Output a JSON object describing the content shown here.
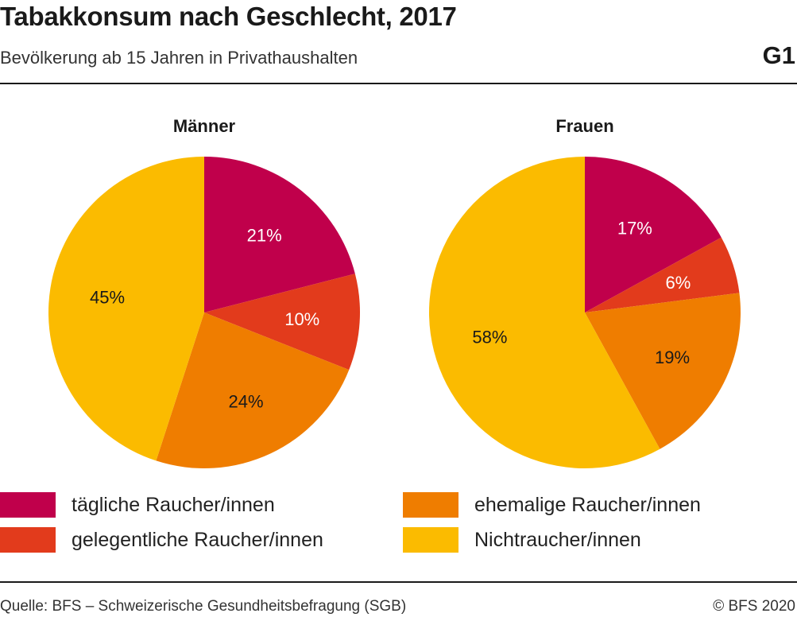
{
  "header": {
    "title": "Tabakkonsum nach Geschlecht, 2017",
    "subtitle": "Bevölkerung ab 15 Jahren in Privathaushalten",
    "graphic_number": "G1"
  },
  "colors": {
    "taeglich": "#c0004b",
    "gelegentlich": "#e23b1c",
    "ehemalig": "#ef7d00",
    "nichtraucher": "#fbbb00",
    "label_light": "#ffffff",
    "label_dark": "#1a1a1a"
  },
  "chart_data": [
    {
      "type": "pie",
      "title": "Männer",
      "categories": [
        "tägliche Raucher/innen",
        "gelegentliche Raucher/innen",
        "ehemalige Raucher/innen",
        "Nichtraucher/innen"
      ],
      "values": [
        21,
        10,
        24,
        45
      ],
      "labels": [
        "21%",
        "10%",
        "24%",
        "45%"
      ]
    },
    {
      "type": "pie",
      "title": "Frauen",
      "categories": [
        "tägliche Raucher/innen",
        "gelegentliche Raucher/innen",
        "ehemalige Raucher/innen",
        "Nichtraucher/innen"
      ],
      "values": [
        17,
        6,
        19,
        58
      ],
      "labels": [
        "17%",
        "6%",
        "19%",
        "58%"
      ]
    }
  ],
  "legend": {
    "items": [
      {
        "label": "tägliche Raucher/innen",
        "color": "#c0004b"
      },
      {
        "label": "gelegentliche Raucher/innen",
        "color": "#e23b1c"
      },
      {
        "label": "ehemalige Raucher/innen",
        "color": "#ef7d00"
      },
      {
        "label": "Nichtraucher/innen",
        "color": "#fbbb00"
      }
    ]
  },
  "footer": {
    "source": "Quelle: BFS – Schweizerische Gesundheitsbefragung (SGB)",
    "copyright": "© BFS 2020"
  }
}
